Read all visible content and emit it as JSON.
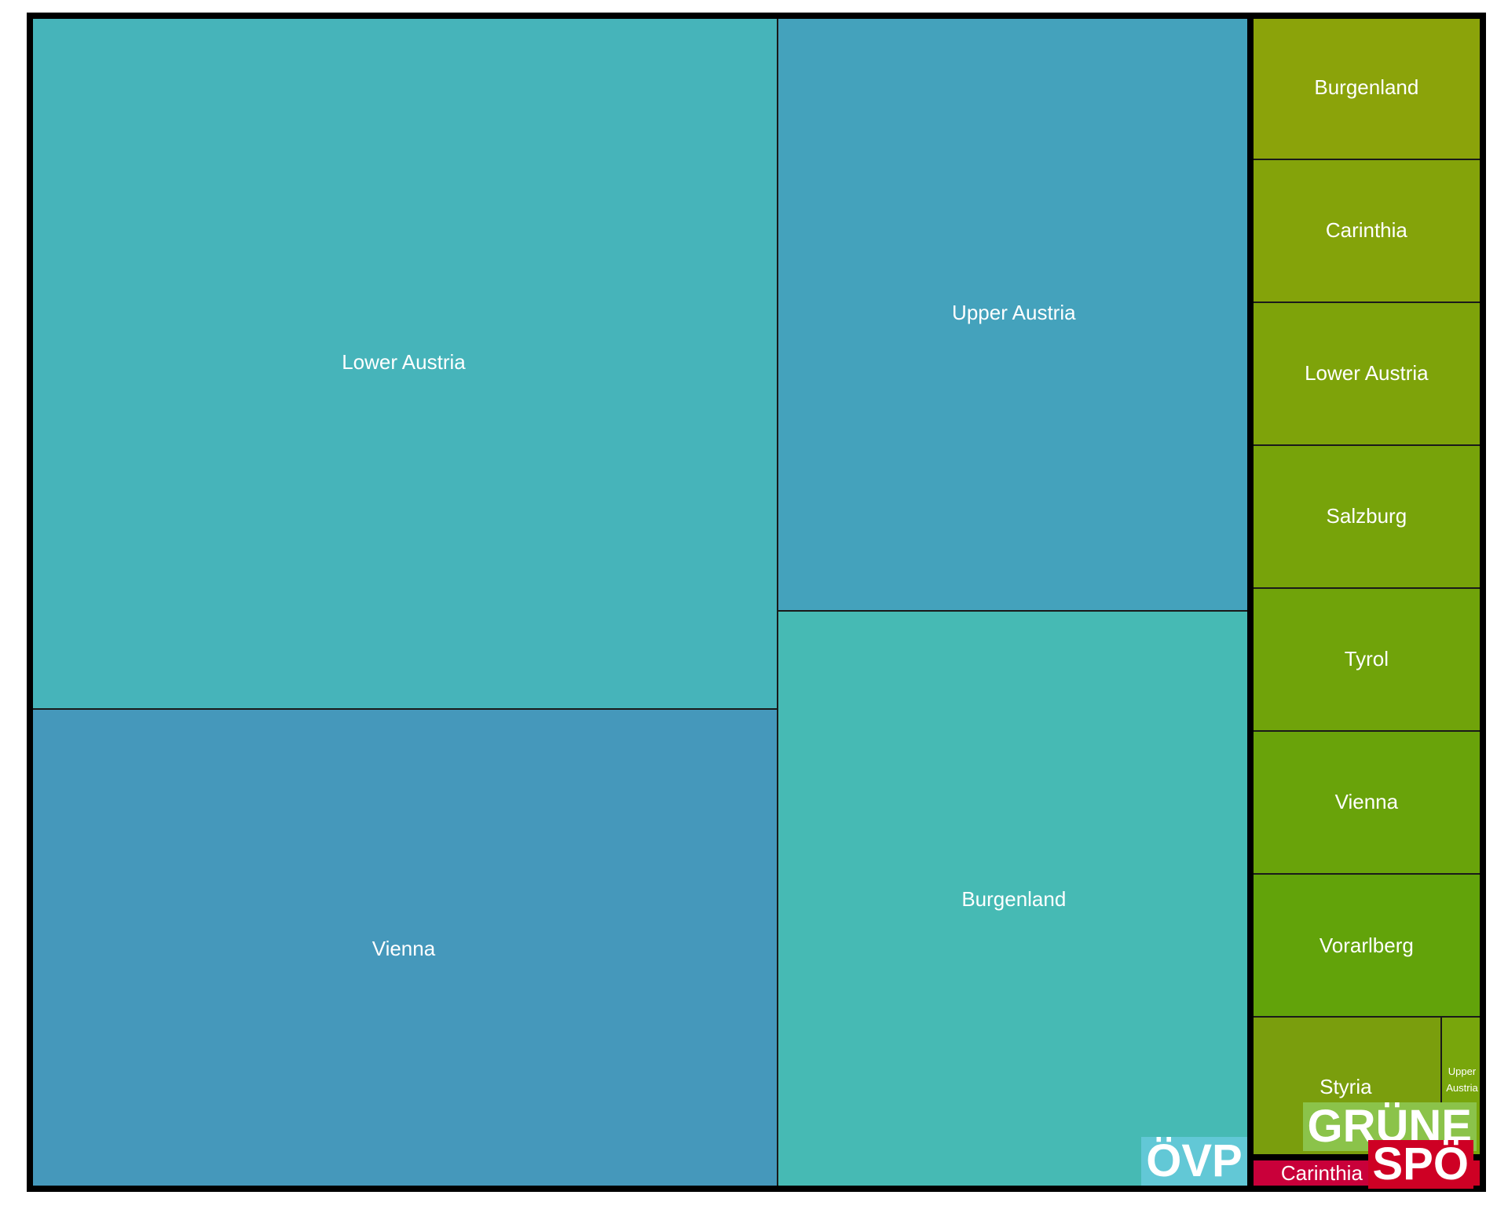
{
  "chart_data": {
    "type": "treemap",
    "title": "",
    "groups": [
      {
        "name": "ÖVP",
        "color": "#62C8D6",
        "items": [
          {
            "label": "Lower Austria",
            "value": 557.6,
            "color": "#46B4BA"
          },
          {
            "label": "Vienna",
            "value": 386.1,
            "color": "#4598BB"
          },
          {
            "label": "Upper Austria",
            "value": 302.6,
            "color": "#44A2BC"
          },
          {
            "label": "Burgenland",
            "value": 294.0,
            "color": "#46BAB4"
          }
        ]
      },
      {
        "name": "GRÜNE",
        "color": "#8BC34A",
        "items": [
          {
            "label": "Burgenland",
            "value": 35.9,
            "color": "#8BA30A"
          },
          {
            "label": "Carinthia",
            "value": 35.8,
            "color": "#84A30A"
          },
          {
            "label": "Lower Austria",
            "value": 35.8,
            "color": "#7EA30A"
          },
          {
            "label": "Salzburg",
            "value": 35.8,
            "color": "#77A30A"
          },
          {
            "label": "Tyrol",
            "value": 35.8,
            "color": "#70A30A"
          },
          {
            "label": "Vienna",
            "value": 35.8,
            "color": "#69A30A"
          },
          {
            "label": "Vorarlberg",
            "value": 35.8,
            "color": "#62A30A"
          },
          {
            "label": "Styria",
            "value": 28.9,
            "color": "#7A9E0D"
          },
          {
            "label": "Upper Austria",
            "value": 6.3,
            "color": "#78A60C"
          }
        ]
      },
      {
        "name": "SPÖ",
        "color": "#CE0024",
        "items": [
          {
            "label": "Carinthia",
            "value": 4.8,
            "color": "#C9003A"
          },
          {
            "label": "",
            "value": 3.0,
            "color": "#CE0024"
          }
        ]
      }
    ]
  }
}
